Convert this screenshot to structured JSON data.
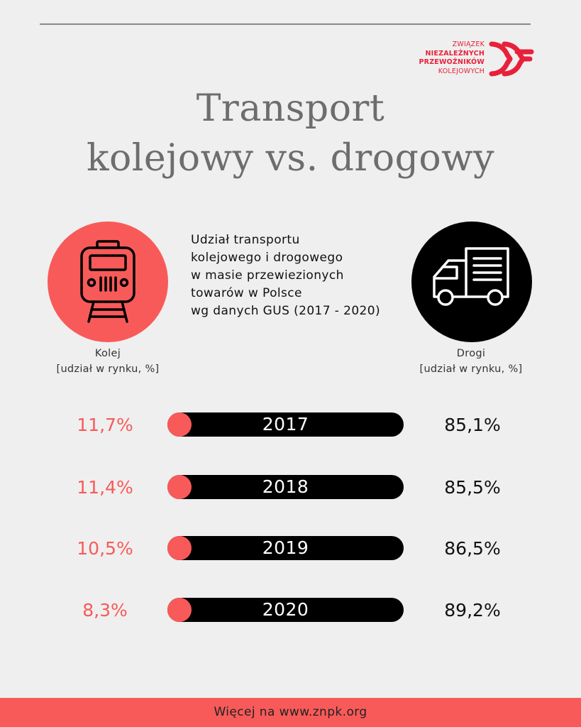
{
  "logo": {
    "lines": [
      "ZWIĄZEK",
      "NIEZALEŻNYCH",
      "PRZEWOŹNIKÓW",
      "KOLEJOWYCH"
    ]
  },
  "title": {
    "line1": "Transport",
    "line2": "kolejowy vs. drogowy"
  },
  "subtitle": {
    "lines": [
      "Udział transportu",
      "kolejowego i drogowego",
      "w masie przewiezionych",
      "towarów w Polsce",
      "wg danych GUS (2017 - 2020)"
    ]
  },
  "icons": {
    "left": "train-icon",
    "right": "truck-icon"
  },
  "labels": {
    "left": {
      "name": "Kolej",
      "unit": "[udział w rynku, %]"
    },
    "right": {
      "name": "Drogi",
      "unit": "[udział w rynku, %]"
    }
  },
  "colors": {
    "rail": "#f85a5a",
    "road": "#000000",
    "title": "#6d6d6d",
    "logo": "#e8213a"
  },
  "chart_data": {
    "type": "table",
    "rows": [
      {
        "year": "2017",
        "rail": "11,7%",
        "road": "85,1%"
      },
      {
        "year": "2018",
        "rail": "11,4%",
        "road": "85,5%"
      },
      {
        "year": "2019",
        "rail": "10,5%",
        "road": "86,5%"
      },
      {
        "year": "2020",
        "rail": "8,3%",
        "road": "89,2%"
      }
    ]
  },
  "footer": {
    "text": "Więcej na www.znpk.org"
  }
}
